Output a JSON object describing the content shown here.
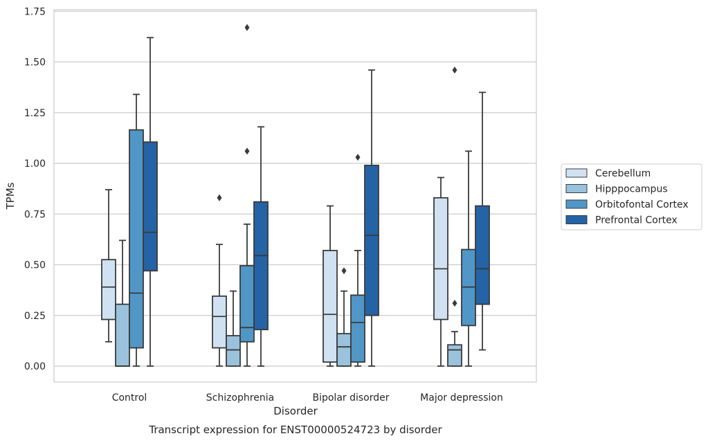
{
  "chart_data": {
    "type": "boxplot",
    "title": "",
    "caption": "Transcript expression for ENST00000524723 by disorder",
    "xlabel": "Disorder",
    "ylabel": "TPMs",
    "ylim": [
      -0.08,
      1.75
    ],
    "yticks": [
      0.0,
      0.25,
      0.5,
      0.75,
      1.0,
      1.25,
      1.5,
      1.75
    ],
    "ytick_labels": [
      "0.00",
      "0.25",
      "0.50",
      "0.75",
      "1.00",
      "1.25",
      "1.50",
      "1.75"
    ],
    "grid": "horizontal",
    "legend_position": "right",
    "categories": [
      "Control",
      "Schizophrenia",
      "Bipolar disorder",
      "Major depression"
    ],
    "series": [
      {
        "name": "Cerebellum",
        "color": "#d0e2f2",
        "boxes": [
          {
            "whislo": 0.12,
            "q1": 0.23,
            "med": 0.39,
            "q3": 0.525,
            "whishi": 0.87,
            "fliers": []
          },
          {
            "whislo": 0.0,
            "q1": 0.09,
            "med": 0.245,
            "q3": 0.345,
            "whishi": 0.6,
            "fliers": [
              0.83
            ]
          },
          {
            "whislo": 0.0,
            "q1": 0.02,
            "med": 0.255,
            "q3": 0.57,
            "whishi": 0.79,
            "fliers": []
          },
          {
            "whislo": 0.0,
            "q1": 0.23,
            "med": 0.48,
            "q3": 0.83,
            "whishi": 0.93,
            "fliers": []
          }
        ]
      },
      {
        "name": "Hipppocampus",
        "color": "#9ac2dc",
        "boxes": [
          {
            "whislo": 0.0,
            "q1": 0.0,
            "med": 0.0,
            "q3": 0.305,
            "whishi": 0.62,
            "fliers": []
          },
          {
            "whislo": 0.0,
            "q1": 0.0,
            "med": 0.08,
            "q3": 0.15,
            "whishi": 0.37,
            "fliers": []
          },
          {
            "whislo": 0.0,
            "q1": 0.0,
            "med": 0.095,
            "q3": 0.16,
            "whishi": 0.37,
            "fliers": [
              0.47
            ]
          },
          {
            "whislo": 0.0,
            "q1": 0.0,
            "med": 0.08,
            "q3": 0.105,
            "whishi": 0.17,
            "fliers": [
              0.31,
              1.46
            ]
          }
        ]
      },
      {
        "name": "Orbitofontal Cortex",
        "color": "#5097c8",
        "boxes": [
          {
            "whislo": 0.0,
            "q1": 0.09,
            "med": 0.36,
            "q3": 1.165,
            "whishi": 1.34,
            "fliers": []
          },
          {
            "whislo": 0.0,
            "q1": 0.12,
            "med": 0.19,
            "q3": 0.495,
            "whishi": 0.7,
            "fliers": [
              1.06,
              1.67
            ]
          },
          {
            "whislo": 0.0,
            "q1": 0.02,
            "med": 0.215,
            "q3": 0.35,
            "whishi": 0.57,
            "fliers": [
              1.03
            ]
          },
          {
            "whislo": 0.0,
            "q1": 0.2,
            "med": 0.39,
            "q3": 0.575,
            "whishi": 1.06,
            "fliers": []
          }
        ]
      },
      {
        "name": "Prefrontal Cortex",
        "color": "#2463a5",
        "boxes": [
          {
            "whislo": 0.0,
            "q1": 0.47,
            "med": 0.66,
            "q3": 1.105,
            "whishi": 1.62,
            "fliers": []
          },
          {
            "whislo": 0.0,
            "q1": 0.18,
            "med": 0.545,
            "q3": 0.81,
            "whishi": 1.18,
            "fliers": []
          },
          {
            "whislo": 0.0,
            "q1": 0.25,
            "med": 0.645,
            "q3": 0.99,
            "whishi": 1.46,
            "fliers": []
          },
          {
            "whislo": 0.08,
            "q1": 0.305,
            "med": 0.48,
            "q3": 0.79,
            "whishi": 1.35,
            "fliers": []
          }
        ]
      }
    ]
  }
}
